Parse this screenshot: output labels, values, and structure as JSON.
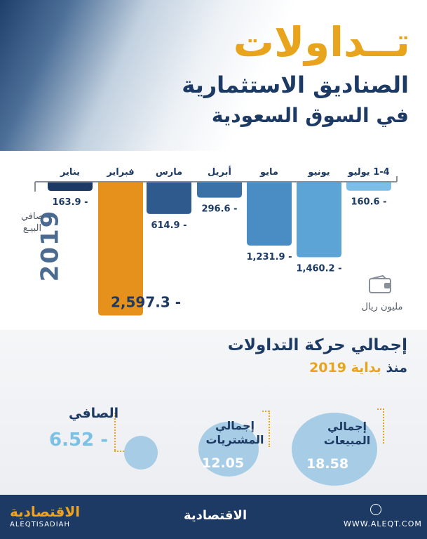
{
  "header": {
    "title_main": "تــداولات",
    "title_line2": "الصناديق الاستثمارية",
    "title_line3": "في السوق السعودية"
  },
  "chart_data": {
    "type": "bar",
    "categories": [
      "يناير",
      "فبراير",
      "مارس",
      "أبريل",
      "مايو",
      "يونيو",
      "1-4 يوليو"
    ],
    "values": [
      -163.9,
      -2597.3,
      -614.9,
      -296.6,
      -1231.9,
      -1460.2,
      -160.6
    ],
    "value_labels": [
      "163.9 -",
      "2,597.3 -",
      "614.9 -",
      "296.6 -",
      "1,231.9 -",
      "1,460.2 -",
      "160.6 -"
    ],
    "ylim": [
      -2700,
      0
    ],
    "year": "2019",
    "ylabel": "صافي البيـع",
    "unit": "مليون ريال",
    "colors": [
      "#1c3a63",
      "#e5911c",
      "#2f5a8d",
      "#3a72a8",
      "#4a8cc4",
      "#5ca4d6",
      "#7cbee6"
    ]
  },
  "summary": {
    "title": "إجمالي حركة التداولات",
    "subtitle_prefix": "منذ",
    "subtitle_hl": "بداية",
    "subtitle_year": "2019",
    "sales_label_1": "إجمالي",
    "sales_label_2": "المبيعات",
    "sales_value": "18.58",
    "buys_label_1": "إجمالي",
    "buys_label_2": "المشتريات",
    "buys_value": "12.05",
    "net_label": "الصافي",
    "net_value": "6.52 -"
  },
  "footer": {
    "logo": "الاقتصادية",
    "logo_latin": "ALEQTISADIAH",
    "center_logo": "الاقتصادية",
    "site": "WWW.ALEQT.COM"
  }
}
